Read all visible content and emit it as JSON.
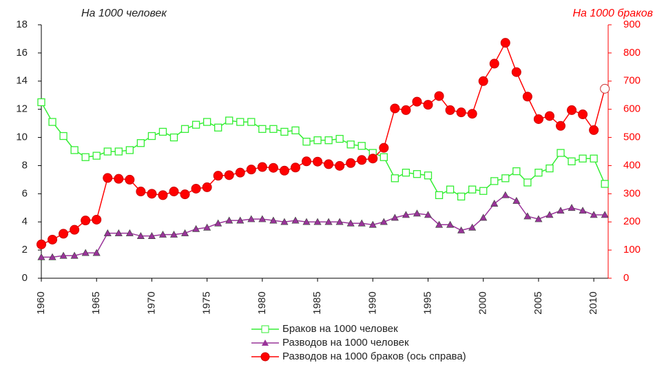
{
  "chart_data": {
    "type": "line",
    "y_axis_label": "На 1000 человек",
    "y2_axis_label": "На 1000 браков",
    "x": [
      1960,
      1961,
      1962,
      1963,
      1964,
      1965,
      1966,
      1967,
      1968,
      1969,
      1970,
      1971,
      1972,
      1973,
      1974,
      1975,
      1976,
      1977,
      1978,
      1979,
      1980,
      1981,
      1982,
      1983,
      1984,
      1985,
      1986,
      1987,
      1988,
      1989,
      1990,
      1991,
      1992,
      1993,
      1994,
      1995,
      1996,
      1997,
      1998,
      1999,
      2000,
      2001,
      2002,
      2003,
      2004,
      2005,
      2006,
      2007,
      2008,
      2009,
      2010,
      2011
    ],
    "xlim": [
      1960,
      2011.3
    ],
    "xticks": [
      1960,
      1965,
      1970,
      1975,
      1980,
      1985,
      1990,
      1995,
      2000,
      2005,
      2010
    ],
    "ylim": [
      0,
      18
    ],
    "yticks": [
      0,
      2,
      4,
      6,
      8,
      10,
      12,
      14,
      16,
      18
    ],
    "y2lim": [
      0,
      900
    ],
    "y2ticks": [
      0,
      100,
      200,
      300,
      400,
      500,
      600,
      700,
      800,
      900
    ],
    "y2_color": "#ff0000",
    "series": [
      {
        "name": "Браков на 1000 человек",
        "color": "#33ee33",
        "marker": "square",
        "values": [
          12.5,
          11.1,
          10.1,
          9.1,
          8.6,
          8.7,
          9.0,
          9.0,
          9.1,
          9.6,
          10.1,
          10.4,
          10.0,
          10.6,
          10.9,
          11.1,
          10.7,
          11.2,
          11.1,
          11.1,
          10.6,
          10.6,
          10.4,
          10.5,
          9.7,
          9.8,
          9.8,
          9.9,
          9.5,
          9.4,
          8.9,
          8.6,
          7.1,
          7.5,
          7.4,
          7.3,
          5.9,
          6.3,
          5.8,
          6.3,
          6.2,
          6.9,
          7.1,
          7.6,
          6.8,
          7.5,
          7.8,
          8.9,
          8.3,
          8.5,
          8.5,
          6.7
        ]
      },
      {
        "name": "Разводов на 1000 человек",
        "color": "#993399",
        "marker": "triangle",
        "values": [
          1.5,
          1.5,
          1.6,
          1.6,
          1.8,
          1.8,
          3.2,
          3.2,
          3.2,
          3.0,
          3.0,
          3.1,
          3.1,
          3.2,
          3.5,
          3.6,
          3.9,
          4.1,
          4.1,
          4.2,
          4.2,
          4.1,
          4.0,
          4.1,
          4.0,
          4.0,
          4.0,
          4.0,
          3.9,
          3.9,
          3.8,
          4.0,
          4.3,
          4.5,
          4.6,
          4.5,
          3.8,
          3.8,
          3.4,
          3.6,
          4.3,
          5.3,
          5.9,
          5.5,
          4.4,
          4.2,
          4.5,
          4.8,
          5.0,
          4.8,
          4.5,
          4.5
        ]
      },
      {
        "name": "Разводов на 1000 браков (ось справа)",
        "color": "#ff0000",
        "marker": "circle",
        "axis": "y2",
        "values": [
          120,
          137,
          158,
          172,
          205,
          208,
          356,
          353,
          350,
          308,
          300,
          295,
          308,
          298,
          318,
          323,
          364,
          366,
          375,
          386,
          395,
          392,
          382,
          393,
          415,
          414,
          405,
          399,
          409,
          420,
          425,
          463,
          603,
          597,
          627,
          616,
          647,
          597,
          589,
          584,
          700,
          762,
          836,
          732,
          645,
          565,
          576,
          541,
          597,
          582,
          526,
          673
        ]
      }
    ]
  }
}
